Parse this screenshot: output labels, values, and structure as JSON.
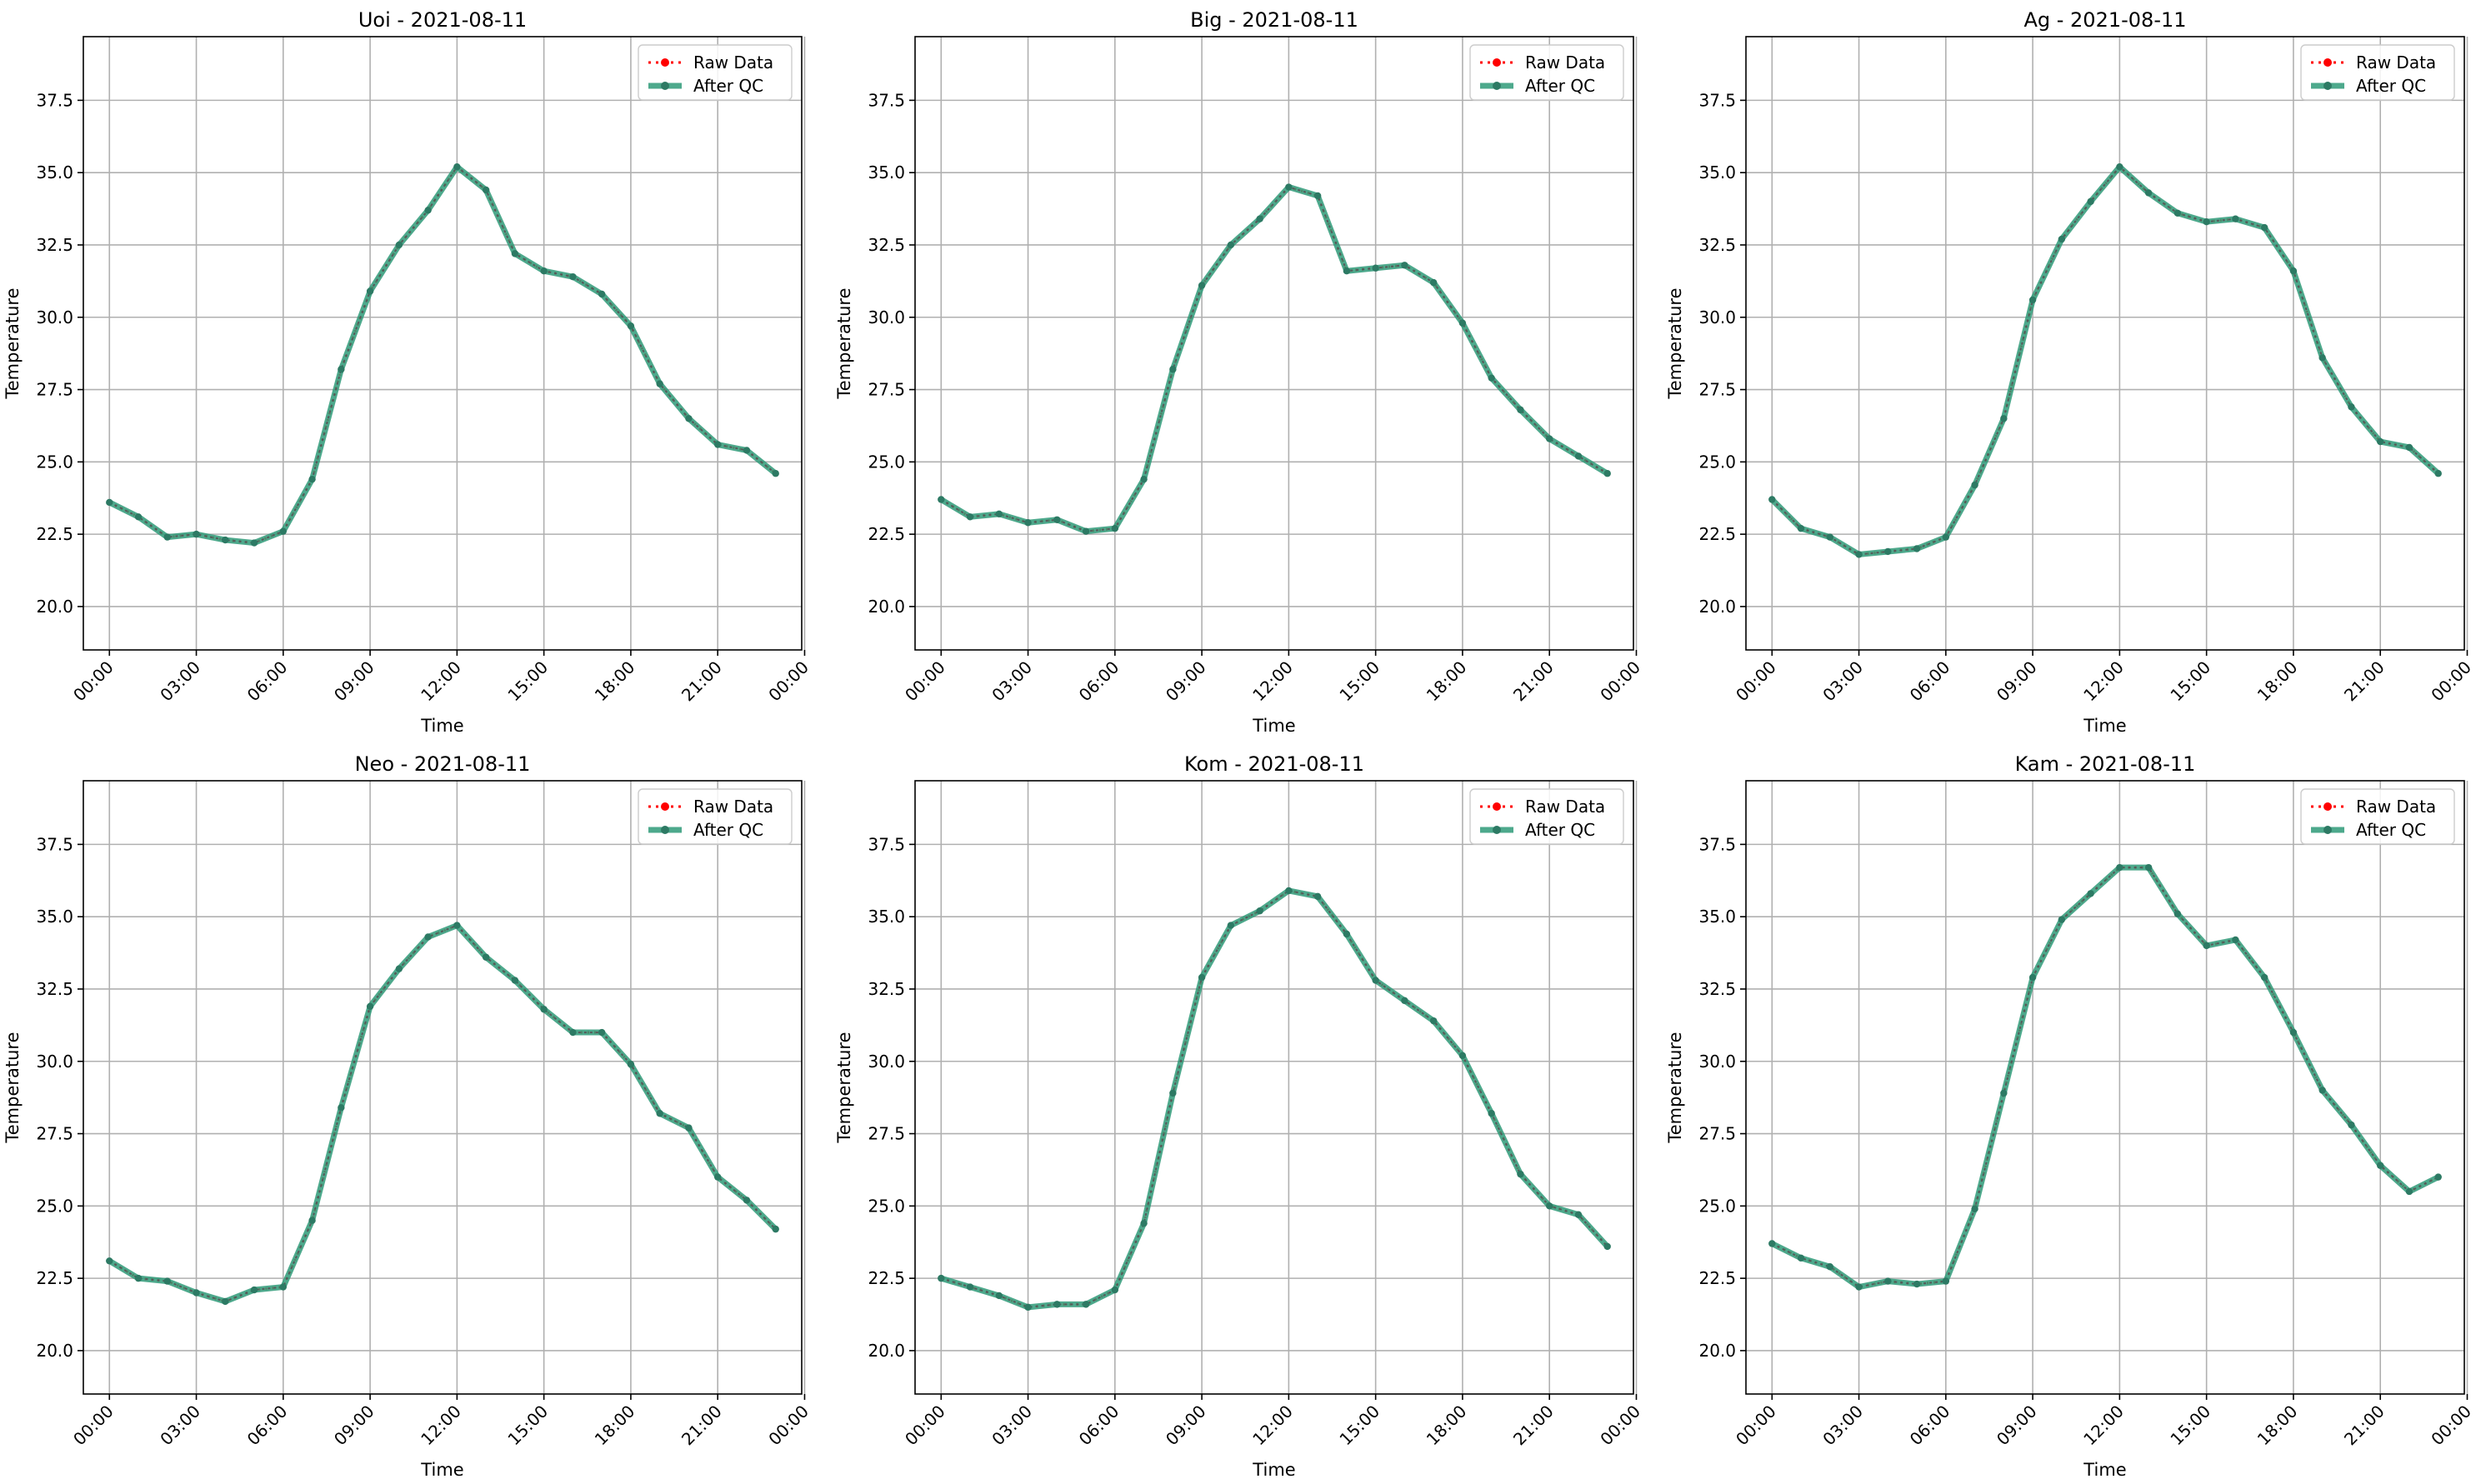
{
  "legend_labels": {
    "raw": "Raw Data",
    "qc": "After QC"
  },
  "colors": {
    "raw": "#ff0000",
    "qc": "#2e9a78",
    "qc_dot": "#2d7a64",
    "grid": "#b0b0b0"
  },
  "chart_data": [
    {
      "type": "line",
      "title": "Uoi - 2021-08-11",
      "xlabel": "Time",
      "ylabel": "Temperature",
      "xlim": [
        -0.9,
        23.9
      ],
      "ylim": [
        18.5,
        39.7
      ],
      "x": [
        0,
        1,
        2,
        3,
        4,
        5,
        6,
        7,
        8,
        9,
        10,
        11,
        12,
        13,
        14,
        15,
        16,
        17,
        18,
        19,
        20,
        21,
        22,
        23
      ],
      "xticks": [
        0,
        3,
        6,
        9,
        12,
        15,
        18,
        21,
        24
      ],
      "xtick_labels": [
        "00:00",
        "03:00",
        "06:00",
        "09:00",
        "12:00",
        "15:00",
        "18:00",
        "21:00",
        "00:00"
      ],
      "yticks": [
        20.0,
        22.5,
        25.0,
        27.5,
        30.0,
        32.5,
        35.0,
        37.5
      ],
      "ytick_labels": [
        "20.0",
        "22.5",
        "25.0",
        "27.5",
        "30.0",
        "32.5",
        "35.0",
        "37.5"
      ],
      "grid": true,
      "legend": "top-right",
      "series": [
        {
          "name": "Raw Data",
          "values": [
            23.6,
            23.1,
            22.4,
            22.5,
            22.3,
            22.2,
            22.6,
            24.4,
            28.2,
            30.9,
            32.5,
            33.7,
            35.2,
            34.4,
            32.2,
            31.6,
            31.4,
            30.8,
            29.7,
            27.7,
            26.5,
            25.6,
            25.4,
            24.6
          ]
        },
        {
          "name": "After QC",
          "values": [
            23.6,
            23.1,
            22.4,
            22.5,
            22.3,
            22.2,
            22.6,
            24.4,
            28.2,
            30.9,
            32.5,
            33.7,
            35.2,
            34.4,
            32.2,
            31.6,
            31.4,
            30.8,
            29.7,
            27.7,
            26.5,
            25.6,
            25.4,
            24.6
          ]
        }
      ]
    },
    {
      "type": "line",
      "title": "Big - 2021-08-11",
      "xlabel": "Time",
      "ylabel": "Temperature",
      "xlim": [
        -0.9,
        23.9
      ],
      "ylim": [
        18.5,
        39.7
      ],
      "x": [
        0,
        1,
        2,
        3,
        4,
        5,
        6,
        7,
        8,
        9,
        10,
        11,
        12,
        13,
        14,
        15,
        16,
        17,
        18,
        19,
        20,
        21,
        22,
        23
      ],
      "xticks": [
        0,
        3,
        6,
        9,
        12,
        15,
        18,
        21,
        24
      ],
      "xtick_labels": [
        "00:00",
        "03:00",
        "06:00",
        "09:00",
        "12:00",
        "15:00",
        "18:00",
        "21:00",
        "00:00"
      ],
      "yticks": [
        20.0,
        22.5,
        25.0,
        27.5,
        30.0,
        32.5,
        35.0,
        37.5
      ],
      "ytick_labels": [
        "20.0",
        "22.5",
        "25.0",
        "27.5",
        "30.0",
        "32.5",
        "35.0",
        "37.5"
      ],
      "grid": true,
      "legend": "top-right",
      "series": [
        {
          "name": "Raw Data",
          "values": [
            23.7,
            23.1,
            23.2,
            22.9,
            23.0,
            22.6,
            22.7,
            24.4,
            28.2,
            31.1,
            32.5,
            33.4,
            34.5,
            34.2,
            31.6,
            31.7,
            31.8,
            31.2,
            29.8,
            27.9,
            26.8,
            25.8,
            25.2,
            24.6
          ]
        },
        {
          "name": "After QC",
          "values": [
            23.7,
            23.1,
            23.2,
            22.9,
            23.0,
            22.6,
            22.7,
            24.4,
            28.2,
            31.1,
            32.5,
            33.4,
            34.5,
            34.2,
            31.6,
            31.7,
            31.8,
            31.2,
            29.8,
            27.9,
            26.8,
            25.8,
            25.2,
            24.6
          ]
        }
      ]
    },
    {
      "type": "line",
      "title": "Ag - 2021-08-11",
      "xlabel": "Time",
      "ylabel": "Temperature",
      "xlim": [
        -0.9,
        23.9
      ],
      "ylim": [
        18.5,
        39.7
      ],
      "x": [
        0,
        1,
        2,
        3,
        4,
        5,
        6,
        7,
        8,
        9,
        10,
        11,
        12,
        13,
        14,
        15,
        16,
        17,
        18,
        19,
        20,
        21,
        22,
        23
      ],
      "xticks": [
        0,
        3,
        6,
        9,
        12,
        15,
        18,
        21,
        24
      ],
      "xtick_labels": [
        "00:00",
        "03:00",
        "06:00",
        "09:00",
        "12:00",
        "15:00",
        "18:00",
        "21:00",
        "00:00"
      ],
      "yticks": [
        20.0,
        22.5,
        25.0,
        27.5,
        30.0,
        32.5,
        35.0,
        37.5
      ],
      "ytick_labels": [
        "20.0",
        "22.5",
        "25.0",
        "27.5",
        "30.0",
        "32.5",
        "35.0",
        "37.5"
      ],
      "grid": true,
      "legend": "top-right",
      "series": [
        {
          "name": "Raw Data",
          "values": [
            23.7,
            22.7,
            22.4,
            21.8,
            21.9,
            22.0,
            22.4,
            24.2,
            26.5,
            30.6,
            32.7,
            34.0,
            35.2,
            34.3,
            33.6,
            33.3,
            33.4,
            33.1,
            31.6,
            28.6,
            26.9,
            25.7,
            25.5,
            24.6
          ]
        },
        {
          "name": "After QC",
          "values": [
            23.7,
            22.7,
            22.4,
            21.8,
            21.9,
            22.0,
            22.4,
            24.2,
            26.5,
            30.6,
            32.7,
            34.0,
            35.2,
            34.3,
            33.6,
            33.3,
            33.4,
            33.1,
            31.6,
            28.6,
            26.9,
            25.7,
            25.5,
            24.6
          ]
        }
      ]
    },
    {
      "type": "line",
      "title": "Neo - 2021-08-11",
      "xlabel": "Time",
      "ylabel": "Temperature",
      "xlim": [
        -0.9,
        23.9
      ],
      "ylim": [
        18.5,
        39.7
      ],
      "x": [
        0,
        1,
        2,
        3,
        4,
        5,
        6,
        7,
        8,
        9,
        10,
        11,
        12,
        13,
        14,
        15,
        16,
        17,
        18,
        19,
        20,
        21,
        22,
        23
      ],
      "xticks": [
        0,
        3,
        6,
        9,
        12,
        15,
        18,
        21,
        24
      ],
      "xtick_labels": [
        "00:00",
        "03:00",
        "06:00",
        "09:00",
        "12:00",
        "15:00",
        "18:00",
        "21:00",
        "00:00"
      ],
      "yticks": [
        20.0,
        22.5,
        25.0,
        27.5,
        30.0,
        32.5,
        35.0,
        37.5
      ],
      "ytick_labels": [
        "20.0",
        "22.5",
        "25.0",
        "27.5",
        "30.0",
        "32.5",
        "35.0",
        "37.5"
      ],
      "grid": true,
      "legend": "top-right",
      "series": [
        {
          "name": "Raw Data",
          "values": [
            23.1,
            22.5,
            22.4,
            22.0,
            21.7,
            22.1,
            22.2,
            24.5,
            28.4,
            31.9,
            33.2,
            34.3,
            34.7,
            33.6,
            32.8,
            31.8,
            31.0,
            31.0,
            29.9,
            28.2,
            27.7,
            26.0,
            25.2,
            24.2
          ]
        },
        {
          "name": "After QC",
          "values": [
            23.1,
            22.5,
            22.4,
            22.0,
            21.7,
            22.1,
            22.2,
            24.5,
            28.4,
            31.9,
            33.2,
            34.3,
            34.7,
            33.6,
            32.8,
            31.8,
            31.0,
            31.0,
            29.9,
            28.2,
            27.7,
            26.0,
            25.2,
            24.2
          ]
        }
      ]
    },
    {
      "type": "line",
      "title": "Kom - 2021-08-11",
      "xlabel": "Time",
      "ylabel": "Temperature",
      "xlim": [
        -0.9,
        23.9
      ],
      "ylim": [
        18.5,
        39.7
      ],
      "x": [
        0,
        1,
        2,
        3,
        4,
        5,
        6,
        7,
        8,
        9,
        10,
        11,
        12,
        13,
        14,
        15,
        16,
        17,
        18,
        19,
        20,
        21,
        22,
        23
      ],
      "xticks": [
        0,
        3,
        6,
        9,
        12,
        15,
        18,
        21,
        24
      ],
      "xtick_labels": [
        "00:00",
        "03:00",
        "06:00",
        "09:00",
        "12:00",
        "15:00",
        "18:00",
        "21:00",
        "00:00"
      ],
      "yticks": [
        20.0,
        22.5,
        25.0,
        27.5,
        30.0,
        32.5,
        35.0,
        37.5
      ],
      "ytick_labels": [
        "20.0",
        "22.5",
        "25.0",
        "27.5",
        "30.0",
        "32.5",
        "35.0",
        "37.5"
      ],
      "grid": true,
      "legend": "top-right",
      "series": [
        {
          "name": "Raw Data",
          "values": [
            22.5,
            22.2,
            21.9,
            21.5,
            21.6,
            21.6,
            22.1,
            24.4,
            28.9,
            32.9,
            34.7,
            35.2,
            35.9,
            35.7,
            34.4,
            32.8,
            32.1,
            31.4,
            30.2,
            28.2,
            26.1,
            25.0,
            24.7,
            23.6
          ]
        },
        {
          "name": "After QC",
          "values": [
            22.5,
            22.2,
            21.9,
            21.5,
            21.6,
            21.6,
            22.1,
            24.4,
            28.9,
            32.9,
            34.7,
            35.2,
            35.9,
            35.7,
            34.4,
            32.8,
            32.1,
            31.4,
            30.2,
            28.2,
            26.1,
            25.0,
            24.7,
            23.6
          ]
        }
      ]
    },
    {
      "type": "line",
      "title": "Kam - 2021-08-11",
      "xlabel": "Time",
      "ylabel": "Temperature",
      "xlim": [
        -0.9,
        23.9
      ],
      "ylim": [
        18.5,
        39.7
      ],
      "x": [
        0,
        1,
        2,
        3,
        4,
        5,
        6,
        7,
        8,
        9,
        10,
        11,
        12,
        13,
        14,
        15,
        16,
        17,
        18,
        19,
        20,
        21,
        22,
        23
      ],
      "xticks": [
        0,
        3,
        6,
        9,
        12,
        15,
        18,
        21,
        24
      ],
      "xtick_labels": [
        "00:00",
        "03:00",
        "06:00",
        "09:00",
        "12:00",
        "15:00",
        "18:00",
        "21:00",
        "00:00"
      ],
      "yticks": [
        20.0,
        22.5,
        25.0,
        27.5,
        30.0,
        32.5,
        35.0,
        37.5
      ],
      "ytick_labels": [
        "20.0",
        "22.5",
        "25.0",
        "27.5",
        "30.0",
        "32.5",
        "35.0",
        "37.5"
      ],
      "grid": true,
      "legend": "top-right",
      "series": [
        {
          "name": "Raw Data",
          "values": [
            23.7,
            23.2,
            22.9,
            22.2,
            22.4,
            22.3,
            22.4,
            24.9,
            28.9,
            32.9,
            34.9,
            35.8,
            36.7,
            36.7,
            35.1,
            34.0,
            34.2,
            32.9,
            31.0,
            29.0,
            27.8,
            26.4,
            25.5,
            26.0
          ]
        },
        {
          "name": "After QC",
          "values": [
            23.7,
            23.2,
            22.9,
            22.2,
            22.4,
            22.3,
            22.4,
            24.9,
            28.9,
            32.9,
            34.9,
            35.8,
            36.7,
            36.7,
            35.1,
            34.0,
            34.2,
            32.9,
            31.0,
            29.0,
            27.8,
            26.4,
            25.5,
            26.0
          ]
        }
      ]
    }
  ]
}
